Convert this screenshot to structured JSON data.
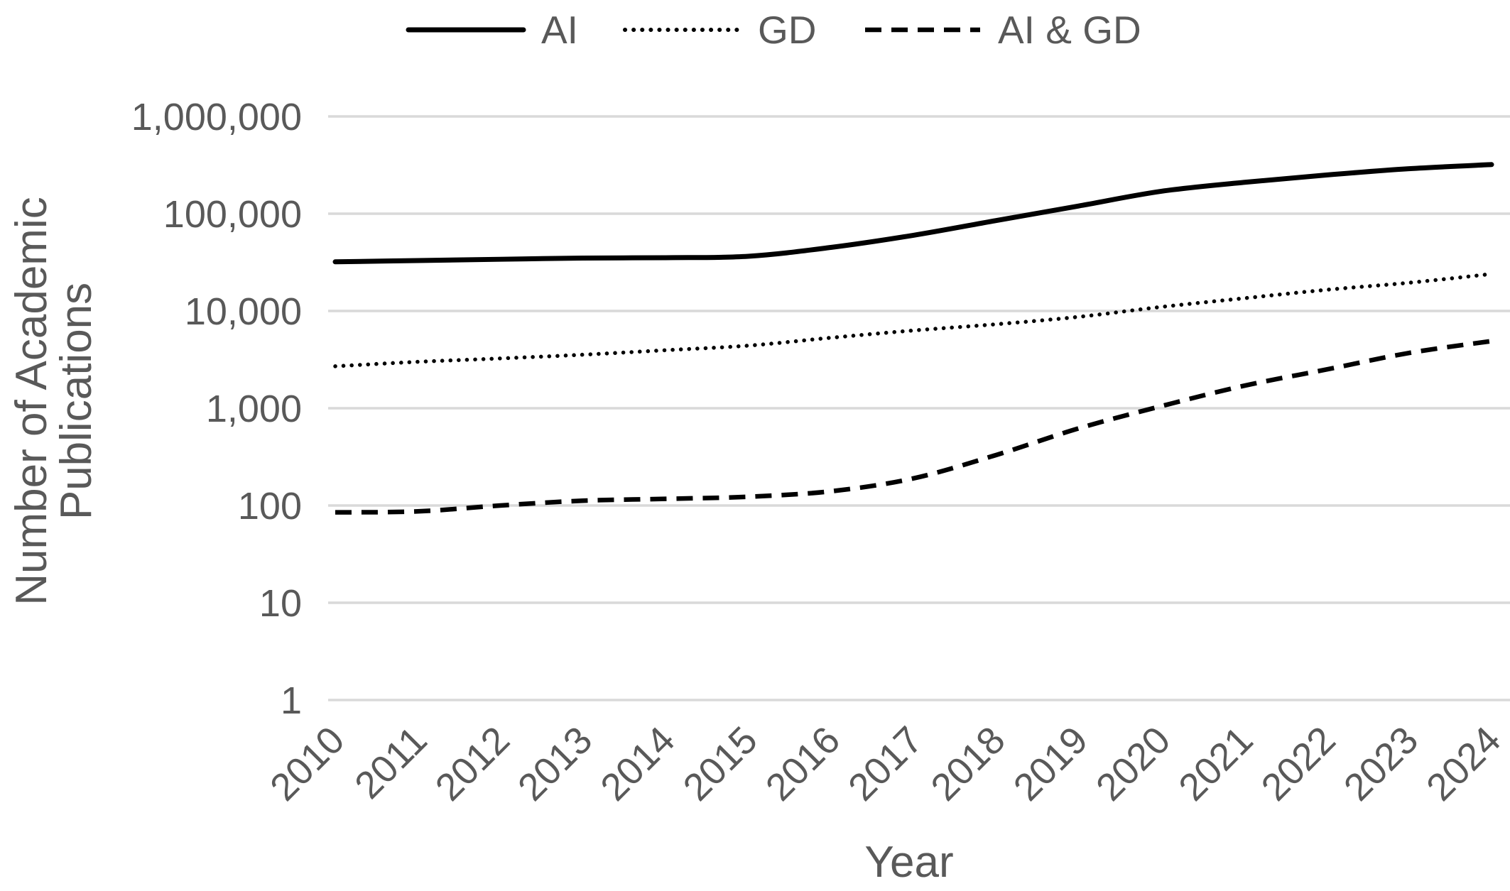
{
  "colors": {
    "background": "#ffffff",
    "text": "#595959",
    "gridline": "#d9d9d9",
    "series_line": "#000000"
  },
  "chart_data": {
    "type": "line",
    "title": "",
    "xlabel": "Year",
    "ylabel": "Number of Academic Publications",
    "ylabel_lines": [
      "Number of Academic",
      "Publications"
    ],
    "y_scale": "log10",
    "ylim": [
      1,
      1000000
    ],
    "y_tick_labels": [
      "1",
      "10",
      "100",
      "1,000",
      "10,000",
      "100,000",
      "1,000,000"
    ],
    "categories": [
      "2010",
      "2011",
      "2012",
      "2013",
      "2014",
      "2015",
      "2016",
      "2017",
      "2018",
      "2019",
      "2020",
      "2021",
      "2022",
      "2023",
      "2024"
    ],
    "grid": "horizontal",
    "legend_position": "top",
    "series": [
      {
        "name": "AI",
        "line_style": "solid",
        "values": [
          32000,
          33000,
          34000,
          35000,
          35300,
          36500,
          45000,
          60000,
          85000,
          120000,
          170000,
          210000,
          250000,
          290000,
          320000
        ]
      },
      {
        "name": "GD",
        "line_style": "dotted",
        "values": [
          2700,
          3000,
          3250,
          3550,
          3950,
          4400,
          5300,
          6300,
          7300,
          8700,
          11000,
          13500,
          16500,
          19500,
          24000
        ]
      },
      {
        "name": "AI & GD",
        "line_style": "dashed",
        "values": [
          85,
          87,
          100,
          112,
          117,
          123,
          140,
          190,
          330,
          620,
          1050,
          1700,
          2500,
          3700,
          4900
        ]
      }
    ]
  }
}
